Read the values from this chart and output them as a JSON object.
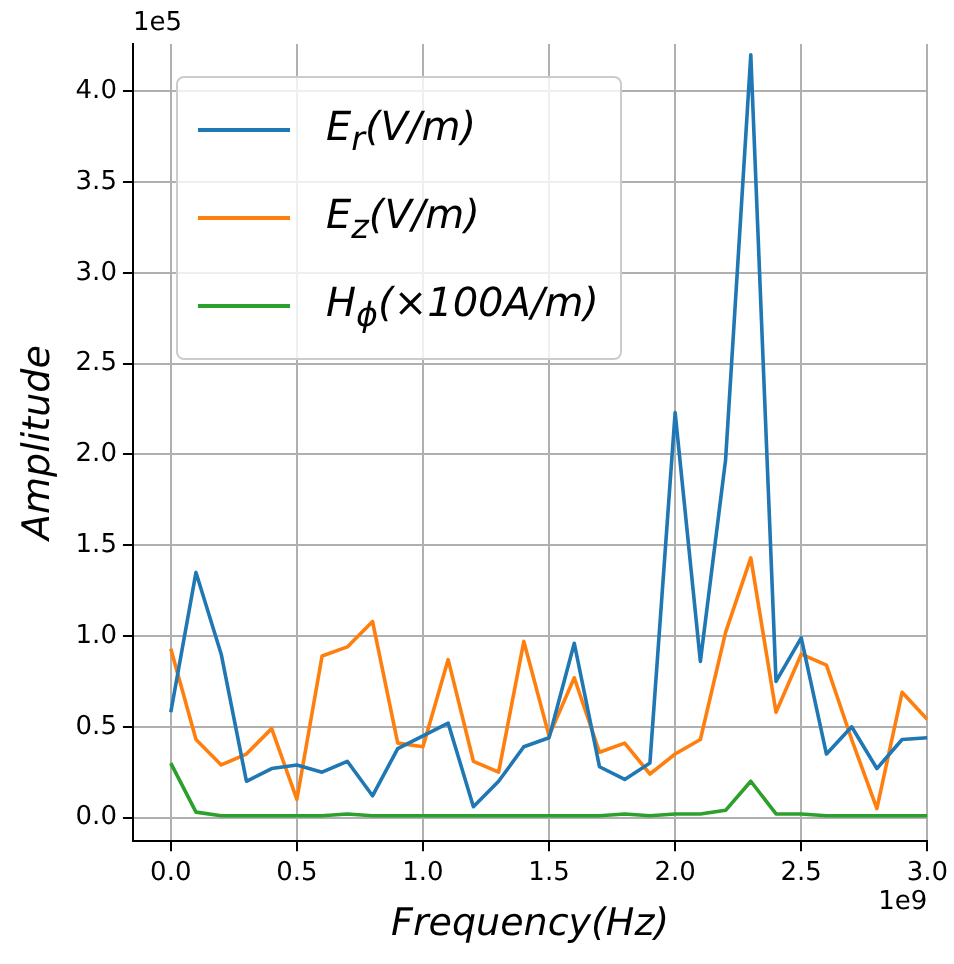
{
  "chart_data": {
    "type": "line",
    "xlabel": "Frequency(Hz)",
    "ylabel": "Amplitude",
    "x": [
      0,
      0.1,
      0.2,
      0.3,
      0.4,
      0.5,
      0.6,
      0.7,
      0.8,
      0.9,
      1.0,
      1.1,
      1.2,
      1.3,
      1.4,
      1.5,
      1.6,
      1.7,
      1.8,
      1.9,
      2.0,
      2.1,
      2.2,
      2.3,
      2.4,
      2.5,
      2.6,
      2.7,
      2.8,
      2.9,
      3.0
    ],
    "series": [
      {
        "name": "E$_{r}$(V/m)",
        "color": "#1f77b4",
        "values": [
          0.58,
          1.35,
          0.9,
          0.2,
          0.27,
          0.29,
          0.25,
          0.31,
          0.12,
          0.38,
          0.45,
          0.52,
          0.06,
          0.2,
          0.39,
          0.44,
          0.96,
          0.28,
          0.21,
          0.3,
          2.23,
          0.86,
          1.97,
          4.2,
          0.75,
          0.99,
          0.35,
          0.5,
          0.27,
          0.43,
          0.44
        ]
      },
      {
        "name": "E$_{z}$(V/m)",
        "color": "#ff7f0e",
        "values": [
          0.93,
          0.43,
          0.29,
          0.35,
          0.49,
          0.1,
          0.89,
          0.94,
          1.08,
          0.41,
          0.39,
          0.87,
          0.31,
          0.25,
          0.97,
          0.45,
          0.77,
          0.36,
          0.41,
          0.24,
          0.35,
          0.43,
          1.02,
          1.43,
          0.58,
          0.9,
          0.84,
          0.43,
          0.05,
          0.69,
          0.54
        ]
      },
      {
        "name": "H$_{ϕ}$(×100A/m)",
        "color": "#2ca02c",
        "values": [
          0.3,
          0.03,
          0.01,
          0.01,
          0.01,
          0.01,
          0.01,
          0.02,
          0.01,
          0.01,
          0.01,
          0.01,
          0.01,
          0.01,
          0.01,
          0.01,
          0.01,
          0.01,
          0.02,
          0.01,
          0.02,
          0.02,
          0.04,
          0.2,
          0.02,
          0.02,
          0.01,
          0.01,
          0.01,
          0.01,
          0.01
        ]
      }
    ],
    "xlim": [
      -0.15,
      3.0
    ],
    "xticks": [
      {
        "value": 0,
        "label": "0.0"
      },
      0.5,
      {
        "value": 1,
        "label": "1.0"
      },
      1.5,
      {
        "value": 2,
        "label": "2.0"
      },
      2.5,
      {
        "value": 3,
        "label": "3.0"
      }
    ],
    "ylim": [
      -0.13,
      4.26
    ],
    "yticks": [
      {
        "value": 0,
        "label": "0.0"
      },
      0.5,
      {
        "value": 1,
        "label": "1.0"
      },
      1.5,
      {
        "value": 2,
        "label": "2.0"
      },
      2.5,
      {
        "value": 3,
        "label": "3.0"
      },
      3.5,
      {
        "value": 4,
        "label": "4.0"
      }
    ],
    "annotations": [
      "1e5",
      "1e9"
    ],
    "grid": true,
    "legend": "top left",
    "marker": "none",
    "line_style": "solid"
  }
}
